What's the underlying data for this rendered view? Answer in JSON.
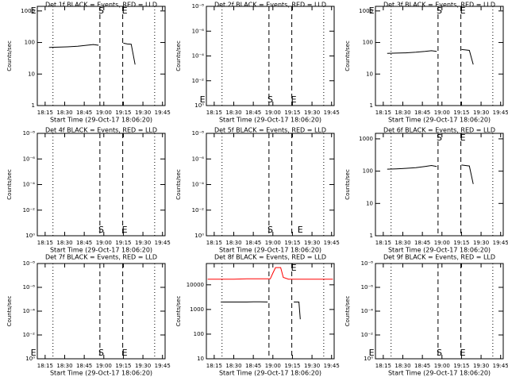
{
  "chart_data": [
    {
      "type": "line",
      "title": "Det 1f BLACK = Events, RED = LLD",
      "xlabel": "Start Time (29-Oct-17 18:06:20)",
      "ylabel": "Counts/sec",
      "log_y": true,
      "xlim": [
        9,
        107
      ],
      "xticks": [
        {
          "value": 15,
          "label": "18:15"
        },
        {
          "value": 30,
          "label": "18:30"
        },
        {
          "value": 45,
          "label": "18:45"
        },
        {
          "value": 60,
          "label": "19:00"
        },
        {
          "value": 75,
          "label": "19:15"
        },
        {
          "value": 90,
          "label": "19:30"
        },
        {
          "value": 105,
          "label": "19:45"
        }
      ],
      "ylim": [
        1,
        1400
      ],
      "yticks": [
        1,
        10,
        100,
        1000
      ],
      "markers": [
        {
          "x": 21,
          "style": "dotted"
        },
        {
          "x": 57,
          "style": "dashed"
        },
        {
          "x": 74.5,
          "style": "dashed"
        },
        {
          "x": 99,
          "style": "dotted"
        }
      ],
      "annotations": [
        {
          "text": "E",
          "x": 6,
          "position": "top"
        },
        {
          "text": "S",
          "x": 58,
          "position": "top"
        },
        {
          "text": "E",
          "x": 76,
          "position": "top"
        }
      ],
      "series": [
        {
          "color": "#000000",
          "x": [
            18,
            25,
            32,
            40,
            47,
            52,
            56,
            65,
            75,
            78,
            81,
            84
          ],
          "values": [
            70,
            71,
            73,
            76,
            82,
            86,
            82,
            null,
            95,
            90,
            88,
            20
          ]
        }
      ]
    },
    {
      "type": "line",
      "title": "Det 2f BLACK = Events, RED = LLD",
      "xlabel": "Start Time (29-Oct-17 18:06:20)",
      "ylabel": "Counts/sec",
      "log_y": true,
      "xlim": [
        9,
        107
      ],
      "xticks": [
        {
          "value": 15,
          "label": "18:15"
        },
        {
          "value": 30,
          "label": "18:30"
        },
        {
          "value": 45,
          "label": "18:45"
        },
        {
          "value": 60,
          "label": "19:00"
        },
        {
          "value": 75,
          "label": "19:15"
        },
        {
          "value": 90,
          "label": "19:30"
        },
        {
          "value": 105,
          "label": "19:45"
        }
      ],
      "ylim": [
        1,
        1e-08
      ],
      "yticks": [
        {
          "value": 1,
          "label": "10⁰"
        },
        {
          "value": 0.01,
          "label": "10⁻²"
        },
        {
          "value": 0.0001,
          "label": "10⁻⁴"
        },
        {
          "value": 1e-06,
          "label": "10⁻⁶"
        },
        {
          "value": 1e-08,
          "label": "10⁻⁸"
        }
      ],
      "markers": [
        {
          "x": 21,
          "style": "dotted"
        },
        {
          "x": 57,
          "style": "dashed"
        },
        {
          "x": 74.5,
          "style": "dashed"
        },
        {
          "x": 99,
          "style": "dotted"
        }
      ],
      "annotations": [
        {
          "text": "E",
          "x": 6,
          "position": "bottom"
        },
        {
          "text": "S",
          "x": 58,
          "position": "bottom"
        },
        {
          "text": "E",
          "x": 76,
          "position": "bottom"
        }
      ],
      "series": []
    },
    {
      "type": "line",
      "title": "Det 3f BLACK = Events, RED = LLD",
      "xlabel": "Start Time (29-Oct-17 18:06:20)",
      "ylabel": "Counts/sec",
      "log_y": true,
      "xlim": [
        9,
        107
      ],
      "xticks": [
        {
          "value": 15,
          "label": "18:15"
        },
        {
          "value": 30,
          "label": "18:30"
        },
        {
          "value": 45,
          "label": "18:45"
        },
        {
          "value": 60,
          "label": "19:00"
        },
        {
          "value": 75,
          "label": "19:15"
        },
        {
          "value": 90,
          "label": "19:30"
        },
        {
          "value": 105,
          "label": "19:45"
        }
      ],
      "ylim": [
        1,
        1400
      ],
      "yticks": [
        1,
        10,
        100,
        1000
      ],
      "markers": [
        {
          "x": 21,
          "style": "dotted"
        },
        {
          "x": 57,
          "style": "dashed"
        },
        {
          "x": 74.5,
          "style": "dashed"
        },
        {
          "x": 99,
          "style": "dotted"
        }
      ],
      "annotations": [
        {
          "text": "E",
          "x": 6,
          "position": "top"
        },
        {
          "text": "S",
          "x": 58,
          "position": "top"
        },
        {
          "text": "E",
          "x": 76,
          "position": "top"
        }
      ],
      "series": [
        {
          "color": "#000000",
          "x": [
            18,
            25,
            32,
            40,
            47,
            52,
            56,
            65,
            75,
            78,
            81,
            84
          ],
          "values": [
            45,
            46,
            47,
            49,
            52,
            55,
            52,
            null,
            60,
            58,
            56,
            20
          ]
        }
      ]
    },
    {
      "type": "line",
      "title": "Det 4f BLACK = Events, RED = LLD",
      "xlabel": "Start Time (29-Oct-17 18:06:20)",
      "ylabel": "Counts/sec",
      "log_y": true,
      "xlim": [
        9,
        107
      ],
      "xticks": [
        {
          "value": 15,
          "label": "18:15"
        },
        {
          "value": 30,
          "label": "18:30"
        },
        {
          "value": 45,
          "label": "18:45"
        },
        {
          "value": 60,
          "label": "19:00"
        },
        {
          "value": 75,
          "label": "19:15"
        },
        {
          "value": 90,
          "label": "19:30"
        },
        {
          "value": 105,
          "label": "19:45"
        }
      ],
      "ylim": [
        1,
        1e-08
      ],
      "yticks": [
        {
          "value": 1,
          "label": "10⁰"
        },
        {
          "value": 0.01,
          "label": "10⁻²"
        },
        {
          "value": 0.0001,
          "label": "10⁻⁴"
        },
        {
          "value": 1e-06,
          "label": "10⁻⁶"
        },
        {
          "value": 1e-08,
          "label": "10⁻⁸"
        }
      ],
      "markers": [
        {
          "x": 21,
          "style": "dotted"
        },
        {
          "x": 57,
          "style": "dashed"
        },
        {
          "x": 74.5,
          "style": "dashed"
        },
        {
          "x": 99,
          "style": "dotted"
        }
      ],
      "annotations": [
        {
          "text": "S",
          "x": 58,
          "position": "bottom"
        },
        {
          "text": "E",
          "x": 76,
          "position": "bottom"
        }
      ],
      "series": []
    },
    {
      "type": "line",
      "title": "Det 5f BLACK = Events, RED = LLD",
      "xlabel": "Start Time (29-Oct-17 18:06:20)",
      "ylabel": "Counts/sec",
      "log_y": true,
      "xlim": [
        9,
        107
      ],
      "xticks": [
        {
          "value": 15,
          "label": "18:15"
        },
        {
          "value": 30,
          "label": "18:30"
        },
        {
          "value": 45,
          "label": "18:45"
        },
        {
          "value": 60,
          "label": "19:00"
        },
        {
          "value": 75,
          "label": "19:15"
        },
        {
          "value": 90,
          "label": "19:30"
        },
        {
          "value": 105,
          "label": "19:45"
        }
      ],
      "ylim": [
        1,
        1e-08
      ],
      "yticks": [
        {
          "value": 1,
          "label": "10⁰"
        },
        {
          "value": 0.01,
          "label": "10⁻²"
        },
        {
          "value": 0.0001,
          "label": "10⁻⁴"
        },
        {
          "value": 1e-06,
          "label": "10⁻⁶"
        },
        {
          "value": 1e-08,
          "label": "10⁻⁸"
        }
      ],
      "markers": [
        {
          "x": 21,
          "style": "dotted"
        },
        {
          "x": 57,
          "style": "dashed"
        },
        {
          "x": 74.5,
          "style": "dashed"
        },
        {
          "x": 99,
          "style": "dotted"
        }
      ],
      "annotations": [
        {
          "text": "S",
          "x": 58,
          "position": "bottom"
        },
        {
          "text": "E",
          "x": 81,
          "position": "bottom"
        }
      ],
      "series": []
    },
    {
      "type": "line",
      "title": "Det 6f BLACK = Events, RED = LLD",
      "xlabel": "Start Time (29-Oct-17 18:06:20)",
      "ylabel": "Counts/sec",
      "log_y": true,
      "xlim": [
        9,
        107
      ],
      "xticks": [
        {
          "value": 15,
          "label": "18:15"
        },
        {
          "value": 30,
          "label": "18:30"
        },
        {
          "value": 45,
          "label": "18:45"
        },
        {
          "value": 60,
          "label": "19:00"
        },
        {
          "value": 75,
          "label": "19:15"
        },
        {
          "value": 90,
          "label": "19:30"
        },
        {
          "value": 105,
          "label": "19:45"
        }
      ],
      "ylim": [
        1,
        1480
      ],
      "yticks": [
        1,
        10,
        100,
        1000
      ],
      "markers": [
        {
          "x": 21,
          "style": "dotted"
        },
        {
          "x": 57,
          "style": "dashed"
        },
        {
          "x": 74.5,
          "style": "dashed"
        },
        {
          "x": 99,
          "style": "dotted"
        }
      ],
      "annotations": [
        {
          "text": "S",
          "x": 58,
          "position": "top"
        },
        {
          "text": "E",
          "x": 76,
          "position": "top"
        }
      ],
      "series": [
        {
          "color": "#000000",
          "x": [
            18,
            25,
            32,
            40,
            47,
            52,
            56,
            65,
            75,
            78,
            81,
            84
          ],
          "values": [
            115,
            118,
            122,
            128,
            140,
            150,
            140,
            null,
            155,
            150,
            145,
            40
          ]
        }
      ]
    },
    {
      "type": "line",
      "title": "Det 7f BLACK = Events, RED = LLD",
      "xlabel": "Start Time (29-Oct-17 18:06:20)",
      "ylabel": "Counts/sec",
      "log_y": true,
      "xlim": [
        9,
        107
      ],
      "xticks": [
        {
          "value": 15,
          "label": "18:15"
        },
        {
          "value": 30,
          "label": "18:30"
        },
        {
          "value": 45,
          "label": "18:45"
        },
        {
          "value": 60,
          "label": "19:00"
        },
        {
          "value": 75,
          "label": "19:15"
        },
        {
          "value": 90,
          "label": "19:30"
        },
        {
          "value": 105,
          "label": "19:45"
        }
      ],
      "ylim": [
        1,
        1e-08
      ],
      "yticks": [
        {
          "value": 1,
          "label": "10⁰"
        },
        {
          "value": 0.01,
          "label": "10⁻²"
        },
        {
          "value": 0.0001,
          "label": "10⁻⁴"
        },
        {
          "value": 1e-06,
          "label": "10⁻⁶"
        },
        {
          "value": 1e-08,
          "label": "10⁻⁸"
        }
      ],
      "markers": [
        {
          "x": 21,
          "style": "dotted"
        },
        {
          "x": 57,
          "style": "dashed"
        },
        {
          "x": 74.5,
          "style": "dashed"
        },
        {
          "x": 99,
          "style": "dotted"
        }
      ],
      "annotations": [
        {
          "text": "E",
          "x": 6,
          "position": "bottom"
        },
        {
          "text": "S",
          "x": 58,
          "position": "bottom"
        },
        {
          "text": "E",
          "x": 76,
          "position": "bottom"
        }
      ],
      "series": []
    },
    {
      "type": "line",
      "title": "Det 8f BLACK = Events, RED = LLD",
      "xlabel": "Start Time (29-Oct-17 18:06:20)",
      "ylabel": "Counts/sec",
      "log_y": true,
      "xlim": [
        9,
        107
      ],
      "xticks": [
        {
          "value": 15,
          "label": "18:15"
        },
        {
          "value": 30,
          "label": "18:30"
        },
        {
          "value": 45,
          "label": "18:45"
        },
        {
          "value": 60,
          "label": "19:00"
        },
        {
          "value": 75,
          "label": "19:15"
        },
        {
          "value": 90,
          "label": "19:30"
        },
        {
          "value": 105,
          "label": "19:45"
        }
      ],
      "ylim": [
        10,
        73000
      ],
      "yticks": [
        10,
        100,
        1000,
        10000
      ],
      "markers": [
        {
          "x": 21,
          "style": "dotted"
        },
        {
          "x": 57,
          "style": "dashed"
        },
        {
          "x": 74.5,
          "style": "dashed"
        },
        {
          "x": 99,
          "style": "dotted"
        }
      ],
      "annotations": [
        {
          "text": "E",
          "x": 76,
          "position": "top"
        }
      ],
      "series": [
        {
          "color": "#ff0000",
          "x": [
            10,
            20,
            30,
            40,
            50,
            58,
            60,
            62,
            66,
            68,
            72,
            80,
            90,
            100,
            106
          ],
          "values": [
            17000,
            17000,
            17000,
            17500,
            17500,
            17500,
            30000,
            50000,
            50000,
            20000,
            17000,
            17000,
            17000,
            17000,
            17000
          ]
        },
        {
          "color": "#000000",
          "x": [
            20,
            30,
            40,
            45,
            50,
            56,
            65,
            76,
            80,
            81
          ],
          "values": [
            2000,
            2000,
            2000,
            2050,
            2050,
            2000,
            null,
            2000,
            2000,
            400
          ]
        }
      ]
    },
    {
      "type": "line",
      "title": "Det 9f BLACK = Events, RED = LLD",
      "xlabel": "Start Time (29-Oct-17 18:06:20)",
      "ylabel": "Counts/sec",
      "log_y": true,
      "xlim": [
        9,
        107
      ],
      "xticks": [
        {
          "value": 15,
          "label": "18:15"
        },
        {
          "value": 30,
          "label": "18:30"
        },
        {
          "value": 45,
          "label": "18:45"
        },
        {
          "value": 60,
          "label": "19:00"
        },
        {
          "value": 75,
          "label": "19:15"
        },
        {
          "value": 90,
          "label": "19:30"
        },
        {
          "value": 105,
          "label": "19:45"
        }
      ],
      "ylim": [
        1,
        1e-08
      ],
      "yticks": [
        {
          "value": 1,
          "label": "10⁰"
        },
        {
          "value": 0.01,
          "label": "10⁻²"
        },
        {
          "value": 0.0001,
          "label": "10⁻⁴"
        },
        {
          "value": 1e-06,
          "label": "10⁻⁶"
        },
        {
          "value": 1e-08,
          "label": "10⁻⁸"
        }
      ],
      "markers": [
        {
          "x": 21,
          "style": "dotted"
        },
        {
          "x": 57,
          "style": "dashed"
        },
        {
          "x": 74.5,
          "style": "dashed"
        },
        {
          "x": 99,
          "style": "dotted"
        }
      ],
      "annotations": [
        {
          "text": "E",
          "x": 6,
          "position": "bottom"
        },
        {
          "text": "S",
          "x": 58,
          "position": "bottom"
        },
        {
          "text": "E",
          "x": 76,
          "position": "bottom"
        }
      ],
      "series": []
    }
  ]
}
